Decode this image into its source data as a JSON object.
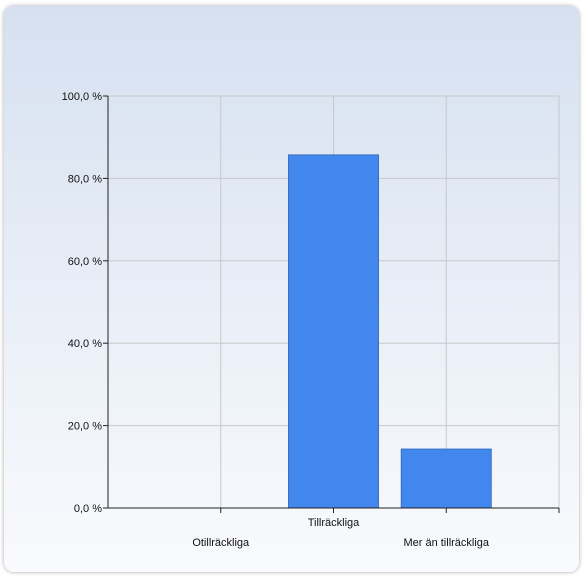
{
  "chart_data": {
    "type": "bar",
    "categories": [
      "Otillräckliga",
      "Tillräckliga",
      "Mer än tillräckliga"
    ],
    "values": [
      0,
      85.7,
      14.3
    ],
    "y_ticks": [
      "0,0 %",
      "20,0 %",
      "40,0 %",
      "60,0 %",
      "80,0 %",
      "100,0 %"
    ],
    "ylim": [
      0,
      100
    ],
    "grid": true,
    "bar_color": "#4287ee",
    "bar_stroke": "#3a6fc4"
  }
}
